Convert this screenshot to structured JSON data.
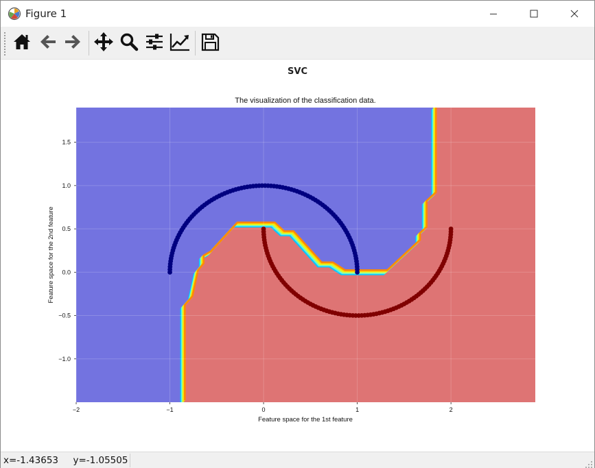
{
  "window": {
    "title": "Figure 1",
    "icons": {
      "app": "matplotlib-figure-icon",
      "minimize": "minimize-icon",
      "maximize": "maximize-icon",
      "close": "close-icon"
    }
  },
  "toolbar": {
    "tools": [
      {
        "name": "home-button",
        "icon": "home-icon"
      },
      {
        "name": "back-button",
        "icon": "arrow-left-icon"
      },
      {
        "name": "forward-button",
        "icon": "arrow-right-icon"
      },
      {
        "name": "pan-button",
        "icon": "move-arrows-icon"
      },
      {
        "name": "zoom-button",
        "icon": "magnifier-icon"
      },
      {
        "name": "subplots-button",
        "icon": "sliders-icon"
      },
      {
        "name": "edit-axes-button",
        "icon": "line-chart-icon"
      },
      {
        "name": "save-button",
        "icon": "floppy-disk-icon"
      }
    ]
  },
  "figure": {
    "suptitle": "SVC",
    "axes_title": "The visualization of the classification data.",
    "xlabel": "Feature space for the 1st feature",
    "ylabel": "Feature space for the 2nd feature"
  },
  "chart_data": {
    "type": "scatter",
    "title": "The visualization of the classification data.",
    "xlabel": "Feature space for the 1st feature",
    "ylabel": "Feature space for the 2nd feature",
    "xlim": [
      -2,
      2.9
    ],
    "ylim": [
      -1.5,
      1.9
    ],
    "xticks": [
      -2,
      -1,
      0,
      1,
      2
    ],
    "xtick_labels": [
      "−2",
      "−1",
      "0",
      "1",
      "2"
    ],
    "yticks": [
      -1.0,
      -0.5,
      0.0,
      0.5,
      1.0,
      1.5
    ],
    "ytick_labels": [
      "−1.0",
      "−0.5",
      "0.0",
      "0.5",
      "1.0",
      "1.5"
    ],
    "grid": true,
    "background": {
      "type": "decision_regions",
      "classes": [
        {
          "class": 0,
          "color": "#7373e0"
        },
        {
          "class": 1,
          "color": "#de7474"
        }
      ],
      "boundary_colormap": [
        "#00c8ff",
        "#5ef0e6",
        "#c8ff40",
        "#ffdc00",
        "#ff8a00"
      ],
      "boundary": [
        [
          -0.86,
          -1.5
        ],
        [
          -0.86,
          -0.4
        ],
        [
          -0.78,
          -0.3
        ],
        [
          -0.72,
          0.0
        ],
        [
          -0.66,
          0.08
        ],
        [
          -0.66,
          0.17
        ],
        [
          -0.58,
          0.22
        ],
        [
          -0.3,
          0.55
        ],
        [
          0.1,
          0.55
        ],
        [
          0.2,
          0.45
        ],
        [
          0.3,
          0.45
        ],
        [
          0.6,
          0.09
        ],
        [
          0.72,
          0.09
        ],
        [
          0.85,
          0.0
        ],
        [
          1.3,
          0.0
        ],
        [
          1.65,
          0.35
        ],
        [
          1.65,
          0.43
        ],
        [
          1.72,
          0.5
        ],
        [
          1.72,
          0.8
        ],
        [
          1.82,
          0.9
        ],
        [
          1.82,
          1.9
        ]
      ]
    },
    "series": [
      {
        "color": "#000080",
        "shape": "upper_half_circle",
        "center": [
          0,
          0
        ],
        "radius": 1.0,
        "x_range": [
          -1,
          1
        ],
        "n_points": 100
      },
      {
        "color": "#800000",
        "shape": "lower_half_circle",
        "center": [
          1,
          0.5
        ],
        "radius": 1.0,
        "x_range": [
          0,
          2
        ],
        "n_points": 100
      }
    ]
  },
  "status": {
    "coordinates": "x=-1.43653     y=-1.05505"
  }
}
